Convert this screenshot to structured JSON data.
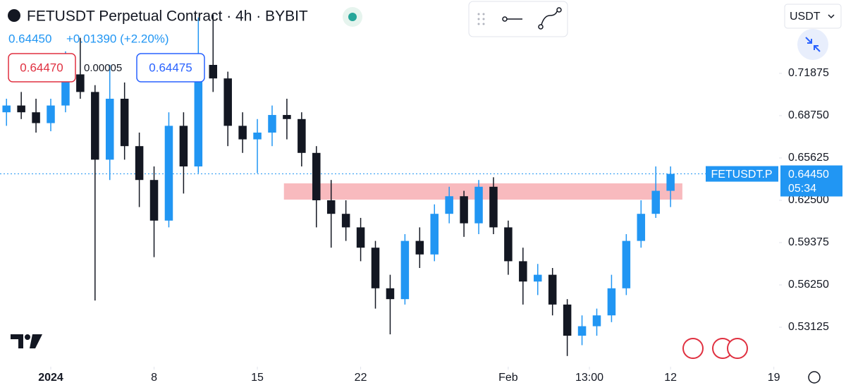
{
  "chart_data": {
    "type": "candlestick",
    "title": "FETUSDT Perpetual Contract · 4h · BYBIT",
    "last_price": "0.64450",
    "change": "+0.01390 (+2.20%)",
    "sell_price": "0.64470",
    "spread": "0.00005",
    "buy_price": "0.64475",
    "currency": "USDT",
    "symbol_tag": "FETUSDT.P",
    "current_price": {
      "value": 0.6445,
      "label": "0.64450"
    },
    "countdown": "05:34",
    "up_color": "#2196f3",
    "down_color": "#131722",
    "zone": {
      "low": 0.6255,
      "high": 0.6375,
      "x": [
        15.8,
        42.8
      ],
      "color": "#f7b3b7"
    },
    "x": [
      -3,
      -2,
      -1,
      0,
      1,
      2,
      3,
      4,
      5,
      6,
      7,
      8,
      9,
      10,
      11,
      12,
      13,
      14,
      15,
      16,
      17,
      18,
      19,
      20,
      21,
      22,
      23,
      24,
      25,
      26,
      27,
      28,
      29,
      30,
      31,
      32,
      33,
      34,
      35,
      36,
      37,
      38,
      39,
      40,
      41,
      42
    ],
    "open": [
      0.69,
      0.695,
      0.69,
      0.682,
      0.695,
      0.718,
      0.705,
      0.655,
      0.7,
      0.665,
      0.64,
      0.61,
      0.68,
      0.65,
      0.725,
      0.715,
      0.68,
      0.67,
      0.675,
      0.688,
      0.685,
      0.66,
      0.625,
      0.615,
      0.605,
      0.59,
      0.56,
      0.552,
      0.595,
      0.585,
      0.615,
      0.628,
      0.608,
      0.635,
      0.605,
      0.58,
      0.565,
      0.57,
      0.548,
      0.525,
      0.532,
      0.54,
      0.56,
      0.595,
      0.615,
      0.632
    ],
    "high": [
      0.7,
      0.705,
      0.7,
      0.7,
      0.735,
      0.745,
      0.71,
      0.725,
      0.712,
      0.675,
      0.65,
      0.69,
      0.69,
      0.76,
      0.762,
      0.72,
      0.69,
      0.685,
      0.695,
      0.7,
      0.69,
      0.665,
      0.64,
      0.625,
      0.612,
      0.595,
      0.57,
      0.6,
      0.605,
      0.622,
      0.635,
      0.632,
      0.64,
      0.642,
      0.61,
      0.59,
      0.578,
      0.575,
      0.552,
      0.54,
      0.545,
      0.57,
      0.6,
      0.625,
      0.65,
      0.65
    ],
    "low": [
      0.68,
      0.685,
      0.675,
      0.676,
      0.69,
      0.7,
      0.551,
      0.64,
      0.655,
      0.62,
      0.583,
      0.605,
      0.63,
      0.645,
      0.705,
      0.665,
      0.66,
      0.645,
      0.665,
      0.67,
      0.65,
      0.605,
      0.59,
      0.595,
      0.58,
      0.545,
      0.526,
      0.548,
      0.575,
      0.58,
      0.608,
      0.598,
      0.6,
      0.6,
      0.57,
      0.548,
      0.555,
      0.54,
      0.51,
      0.518,
      0.525,
      0.535,
      0.555,
      0.59,
      0.612,
      0.62
    ],
    "close": [
      0.695,
      0.69,
      0.682,
      0.695,
      0.718,
      0.705,
      0.655,
      0.7,
      0.665,
      0.64,
      0.61,
      0.68,
      0.65,
      0.725,
      0.715,
      0.68,
      0.67,
      0.675,
      0.688,
      0.685,
      0.66,
      0.625,
      0.615,
      0.605,
      0.59,
      0.56,
      0.552,
      0.595,
      0.585,
      0.615,
      0.628,
      0.608,
      0.635,
      0.605,
      0.58,
      0.565,
      0.57,
      0.548,
      0.525,
      0.532,
      0.54,
      0.56,
      0.595,
      0.615,
      0.632,
      0.6445
    ],
    "xlim": [
      -3.44,
      49.35
    ],
    "xticks": [
      {
        "value": 0,
        "label": "2024"
      },
      {
        "value": 7,
        "label": "8"
      },
      {
        "value": 14,
        "label": "15"
      },
      {
        "value": 21,
        "label": "22"
      },
      {
        "value": 31,
        "label": "Feb"
      },
      {
        "value": 36.5,
        "label": "13:00"
      },
      {
        "value": 42,
        "label": "12"
      },
      {
        "value": 49,
        "label": "19"
      }
    ],
    "ylim": [
      0.50208,
      0.77292
    ],
    "yticks": [
      0.53125,
      {
        "value": 0.5625,
        "label": "0.56250"
      },
      0.59375,
      {
        "value": 0.625,
        "label": "0.62500"
      },
      0.65625,
      {
        "value": 0.6875,
        "label": "0.68750"
      },
      0.71875
    ]
  }
}
